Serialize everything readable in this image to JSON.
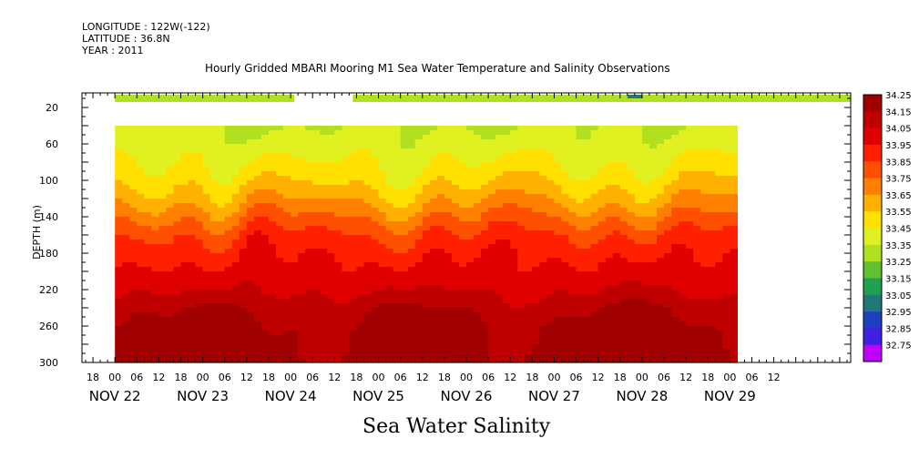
{
  "header": {
    "longitude": "LONGITUDE : 122W(-122)",
    "latitude": "LATITUDE : 36.8N",
    "year": "YEAR : 2011"
  },
  "chart_data": {
    "type": "heatmap",
    "title": "Hourly Gridded MBARI Mooring M1 Sea Water Temperature and Salinity Observations",
    "xlabel": "Sea Water Salinity",
    "ylabel": "DEPTH (m)",
    "ylim": [
      300,
      4
    ],
    "yticks": [
      20,
      60,
      100,
      140,
      180,
      220,
      260,
      300
    ],
    "x_hour_ticks": [
      "18",
      "00",
      "06",
      "12",
      "18",
      "00",
      "06",
      "12",
      "18",
      "00",
      "06",
      "12",
      "18",
      "00",
      "06",
      "12",
      "18",
      "00",
      "06",
      "12",
      "18",
      "00",
      "06",
      "12",
      "18",
      "00",
      "06",
      "12",
      "18",
      "00",
      "06",
      "12"
    ],
    "x_day_labels": [
      "NOV 22",
      "NOV 23",
      "NOV 24",
      "NOV 25",
      "NOV 26",
      "NOV 27",
      "NOV 28",
      "NOV 29"
    ],
    "x_range_hours": [
      -9,
      201
    ],
    "data_hours": [
      0,
      170
    ],
    "depth_range": [
      40,
      300
    ],
    "surface_depth": 10,
    "surface_hours": [
      [
        0,
        49
      ],
      [
        65,
        201
      ]
    ],
    "surface_value": 33.25,
    "surface_min_value": 32.95,
    "surface_min_hour": 142,
    "colorbar": {
      "levels": [
        34.25,
        34.15,
        34.05,
        33.95,
        33.85,
        33.75,
        33.65,
        33.55,
        33.45,
        33.35,
        33.25,
        33.15,
        33.05,
        32.95,
        32.85,
        32.75
      ],
      "colors": [
        "#a00000",
        "#c00000",
        "#e00000",
        "#ff2000",
        "#ff5000",
        "#ff8000",
        "#ffb000",
        "#ffe000",
        "#e0f020",
        "#b0e020",
        "#60c030",
        "#20a050",
        "#207878",
        "#2040c0",
        "#4020e0",
        "#c000ff"
      ]
    },
    "profile_depths": [
      40,
      60,
      80,
      100,
      120,
      140,
      160,
      180,
      200,
      220,
      240,
      260,
      280,
      300
    ],
    "profile_values": [
      33.35,
      33.39,
      33.45,
      33.52,
      33.62,
      33.74,
      33.86,
      33.93,
      33.98,
      34.04,
      34.13,
      34.18,
      34.19,
      34.2
    ]
  }
}
